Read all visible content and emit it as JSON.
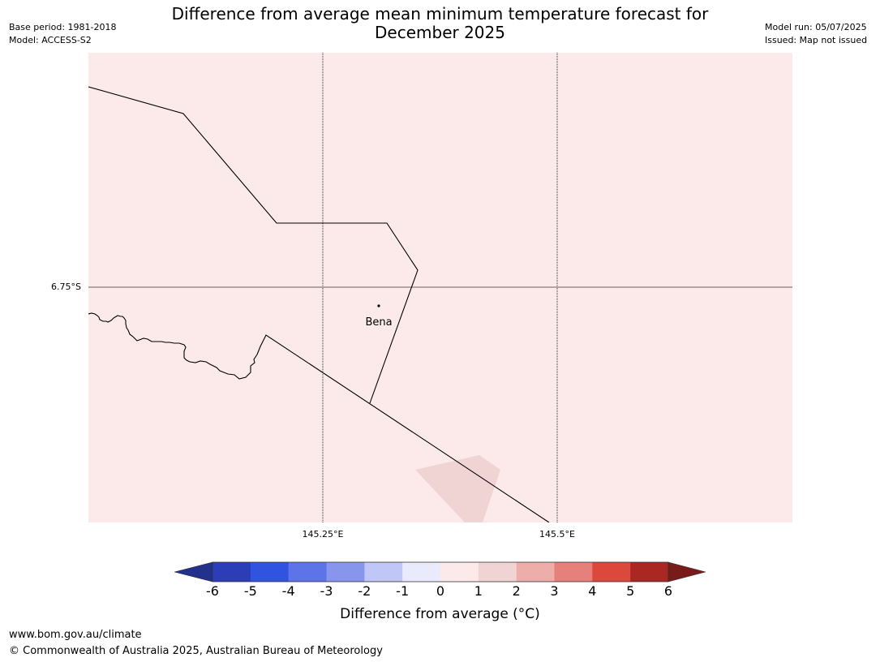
{
  "meta": {
    "base_period": "Base period: 1981-2018",
    "model": "Model: ACCESS-S2",
    "model_run": "Model run: 05/07/2025",
    "issued": "Issued: Map not issued"
  },
  "title": {
    "line1": "Difference from average mean minimum temperature forecast for",
    "line2": "December 2025"
  },
  "map": {
    "background_color": "#fbeae9",
    "patch_color": "#f0d4d3",
    "place_label": "Bena",
    "lat_labels": [
      "6.75°S"
    ],
    "lon_labels": [
      "145.25°E",
      "145.5°E"
    ]
  },
  "colorbar": {
    "ticks": [
      "-6",
      "-5",
      "-4",
      "-3",
      "-2",
      "-1",
      "0",
      "1",
      "2",
      "3",
      "4",
      "5",
      "6"
    ],
    "colors": [
      "#22318c",
      "#2c3db8",
      "#3053e0",
      "#5d73e8",
      "#8796ec",
      "#c0c6f5",
      "#e9ebfc",
      "#fbeae9",
      "#f0d4d3",
      "#edaea9",
      "#e6807a",
      "#dd483d",
      "#aa2722",
      "#771c1a"
    ],
    "label": "Difference from average (°C)"
  },
  "footer": {
    "url": "www.bom.gov.au/climate",
    "copyright": "© Commonwealth of Australia 2025, Australian Bureau of Meteorology"
  }
}
